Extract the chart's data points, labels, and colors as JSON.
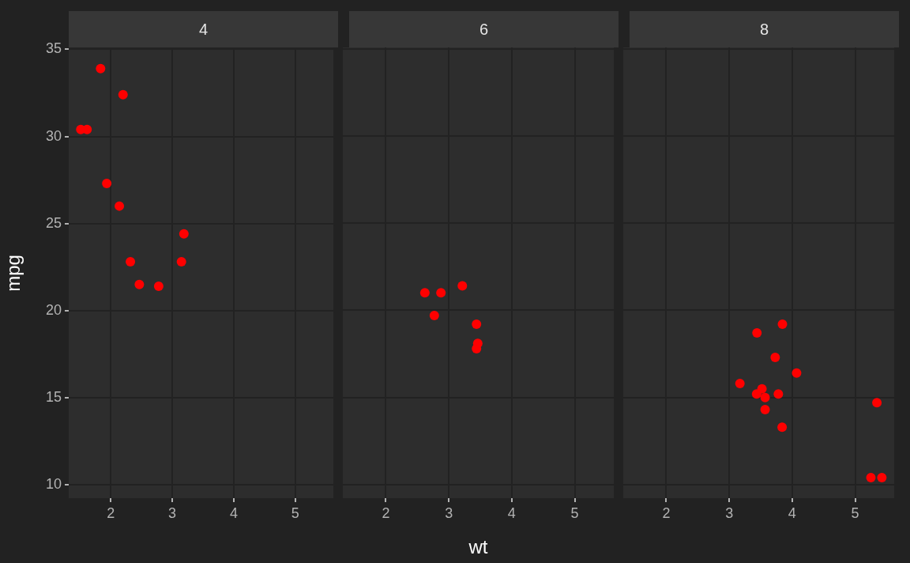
{
  "chart_data": [
    {
      "type": "scatter",
      "title": "4",
      "ylabel": "mpg",
      "x": [
        2.32,
        3.19,
        3.15,
        2.2,
        1.615,
        1.835,
        2.465,
        1.935,
        2.14,
        1.513,
        2.78
      ],
      "series": [
        {
          "color": "#ff0000",
          "values": [
            22.8,
            24.4,
            22.8,
            32.4,
            30.4,
            33.9,
            21.5,
            27.3,
            26.0,
            30.4,
            21.4
          ]
        }
      ],
      "xlim": [
        1.317,
        5.62
      ],
      "ylim": [
        9.225,
        35.075
      ],
      "xticks": [
        2,
        3,
        4,
        5
      ],
      "yticks": [
        10,
        15,
        20,
        25,
        30,
        35
      ],
      "grid": true,
      "legend": false,
      "marker": "circle"
    },
    {
      "type": "scatter",
      "title": "6",
      "xlabel": "wt",
      "x": [
        2.62,
        2.875,
        3.215,
        3.46,
        3.44,
        3.44,
        2.77
      ],
      "series": [
        {
          "color": "#ff0000",
          "values": [
            21.0,
            21.0,
            21.4,
            18.1,
            19.2,
            17.8,
            19.7
          ]
        }
      ],
      "xlim": [
        1.317,
        5.62
      ],
      "ylim": [
        9.225,
        35.075
      ],
      "xticks": [
        2,
        3,
        4,
        5
      ],
      "yticks": [
        10,
        15,
        20,
        25,
        30,
        35
      ],
      "grid": true,
      "legend": false,
      "marker": "circle",
      "tick_labels": "x"
    },
    {
      "type": "scatter",
      "title": "8",
      "x": [
        3.44,
        3.57,
        4.07,
        3.73,
        3.78,
        5.25,
        5.424,
        5.345,
        3.52,
        3.435,
        3.84,
        3.845,
        3.17,
        3.57
      ],
      "series": [
        {
          "color": "#ff0000",
          "values": [
            18.7,
            14.3,
            16.4,
            17.3,
            15.2,
            10.4,
            10.4,
            14.7,
            15.5,
            15.2,
            13.3,
            19.2,
            15.8,
            15.0
          ]
        }
      ],
      "xlim": [
        1.317,
        5.62
      ],
      "ylim": [
        9.225,
        35.075
      ],
      "xticks": [
        2,
        3,
        4,
        5
      ],
      "yticks": [
        10,
        15,
        20,
        25,
        30,
        35
      ],
      "grid": true,
      "legend": false,
      "marker": "circle",
      "tick_labels": "x"
    }
  ]
}
